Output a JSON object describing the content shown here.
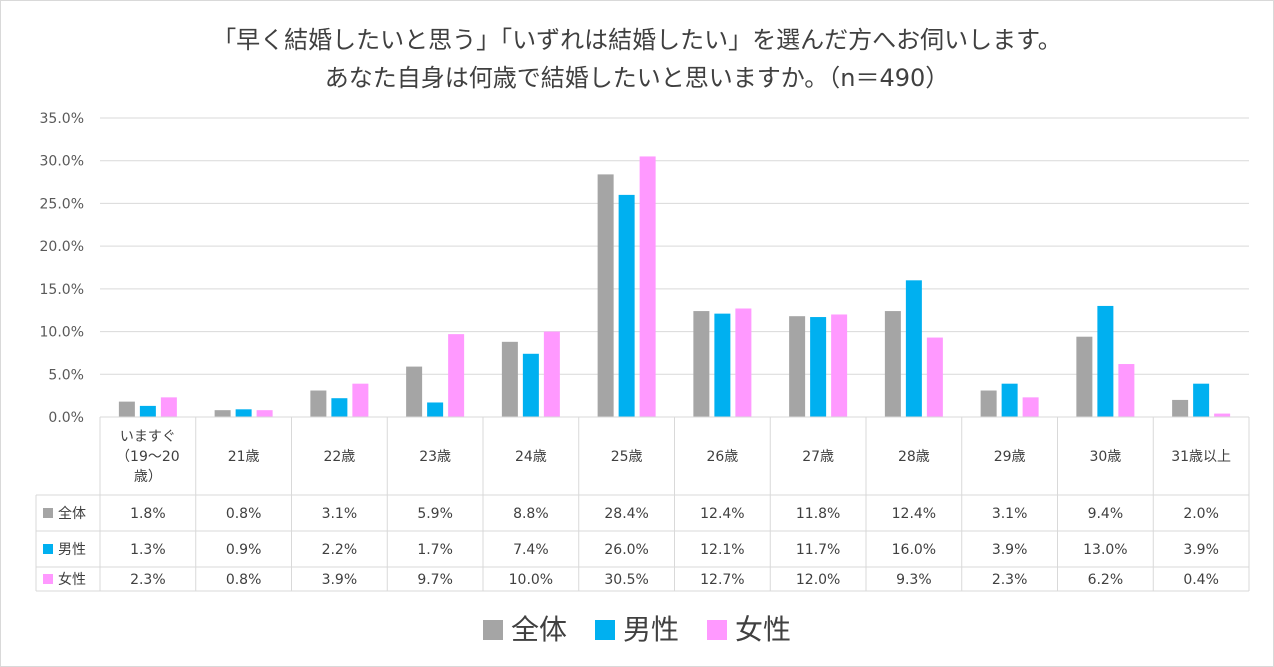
{
  "title_line1": "「早く結婚したいと思う」「いずれは結婚したい」を選んだ方へお伺いします。",
  "title_line2": "あなた自身は何歳で結婚したいと思いますか。（n＝490）",
  "colors": {
    "全体": "#a5a5a5",
    "男性": "#00b0f0",
    "女性": "#ff99ff",
    "grid": "#d9d9d9"
  },
  "chart_data": {
    "type": "bar",
    "categories": [
      "いますぐ（19～20歳）",
      "21歳",
      "22歳",
      "23歳",
      "24歳",
      "25歳",
      "26歳",
      "27歳",
      "28歳",
      "29歳",
      "30歳",
      "31歳以上"
    ],
    "category_lines": [
      [
        "いますぐ",
        "（19～20",
        "歳）"
      ],
      [
        "21歳"
      ],
      [
        "22歳"
      ],
      [
        "23歳"
      ],
      [
        "24歳"
      ],
      [
        "25歳"
      ],
      [
        "26歳"
      ],
      [
        "27歳"
      ],
      [
        "28歳"
      ],
      [
        "29歳"
      ],
      [
        "30歳"
      ],
      [
        "31歳以上"
      ]
    ],
    "series": [
      {
        "name": "全体",
        "values": [
          1.8,
          0.8,
          3.1,
          5.9,
          8.8,
          28.4,
          12.4,
          11.8,
          12.4,
          3.1,
          9.4,
          2.0
        ],
        "labels": [
          "1.8%",
          "0.8%",
          "3.1%",
          "5.9%",
          "8.8%",
          "28.4%",
          "12.4%",
          "11.8%",
          "12.4%",
          "3.1%",
          "9.4%",
          "2.0%"
        ]
      },
      {
        "name": "男性",
        "values": [
          1.3,
          0.9,
          2.2,
          1.7,
          7.4,
          26.0,
          12.1,
          11.7,
          16.0,
          3.9,
          13.0,
          3.9
        ],
        "labels": [
          "1.3%",
          "0.9%",
          "2.2%",
          "1.7%",
          "7.4%",
          "26.0%",
          "12.1%",
          "11.7%",
          "16.0%",
          "3.9%",
          "13.0%",
          "3.9%"
        ]
      },
      {
        "name": "女性",
        "values": [
          2.3,
          0.8,
          3.9,
          9.7,
          10.0,
          30.5,
          12.7,
          12.0,
          9.3,
          2.3,
          6.2,
          0.4
        ],
        "labels": [
          "2.3%",
          "0.8%",
          "3.9%",
          "9.7%",
          "10.0%",
          "30.5%",
          "12.7%",
          "12.0%",
          "9.3%",
          "2.3%",
          "6.2%",
          "0.4%"
        ]
      }
    ],
    "yticks": [
      "0.0%",
      "5.0%",
      "10.0%",
      "15.0%",
      "20.0%",
      "25.0%",
      "30.0%",
      "35.0%"
    ],
    "ylim": [
      0,
      35
    ],
    "grid": true,
    "legend_position": "bottom",
    "data_table": true
  }
}
